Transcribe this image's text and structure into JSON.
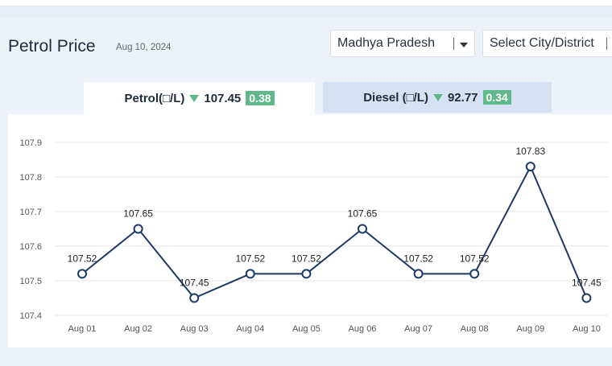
{
  "header": {
    "title": "Petrol Price",
    "date": "Aug 10, 2024"
  },
  "filters": {
    "state": "Madhya Pradesh",
    "city_placeholder": "Select City/District"
  },
  "tabs": [
    {
      "label": "Petrol(□/L)",
      "price": "107.45",
      "change": "0.38",
      "trend": "down"
    },
    {
      "label": "Diesel (□/L)",
      "price": "92.77",
      "change": "0.34",
      "trend": "down"
    }
  ],
  "colors": {
    "line": "#1c3a66",
    "badge": "#5fb88a",
    "active_tab": "#ffffff",
    "inactive_tab": "#d6e1f4"
  },
  "chart_data": {
    "type": "line",
    "categories": [
      "Aug 01",
      "Aug 02",
      "Aug 03",
      "Aug 04",
      "Aug 05",
      "Aug 06",
      "Aug 07",
      "Aug 08",
      "Aug 09",
      "Aug 10"
    ],
    "values": [
      107.52,
      107.65,
      107.45,
      107.52,
      107.52,
      107.65,
      107.52,
      107.52,
      107.83,
      107.45
    ],
    "data_labels": [
      "107.52",
      "107.65",
      "107.45",
      "107.52",
      "107.52",
      "107.65",
      "107.52",
      "107.52",
      "107.83",
      "107.45"
    ],
    "yticks": [
      "107.9",
      "107.8",
      "107.7",
      "107.6",
      "107.5",
      "107.4"
    ],
    "ylim": [
      107.4,
      107.9
    ],
    "grid": true,
    "legend": "none"
  }
}
